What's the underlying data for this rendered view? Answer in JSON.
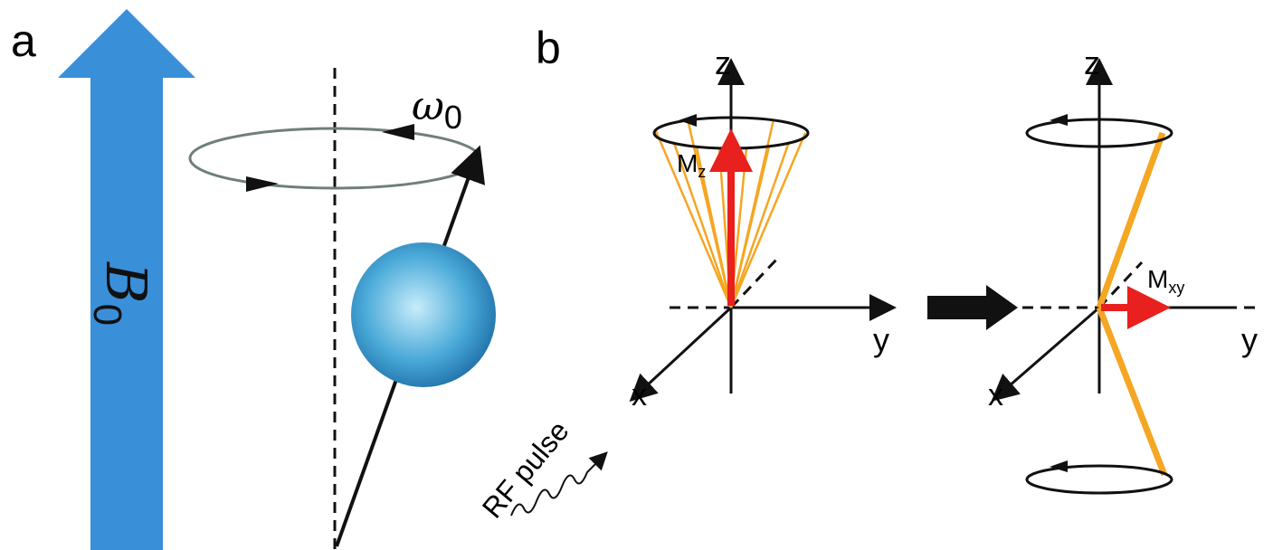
{
  "panel_a": {
    "label": "a",
    "field": {
      "symbol": "B",
      "subscript": "0"
    },
    "precession": {
      "symbol": "ω",
      "subscript": "0"
    }
  },
  "panel_b": {
    "label": "b",
    "before": {
      "z": "z",
      "y": "y",
      "x": "x",
      "magnetization": {
        "symbol": "M",
        "subscript": "z"
      },
      "pulse": "RF pulse"
    },
    "after": {
      "z": "z",
      "y": "y",
      "x": "x",
      "magnetization": {
        "symbol": "M",
        "subscript": "xy"
      }
    }
  }
}
